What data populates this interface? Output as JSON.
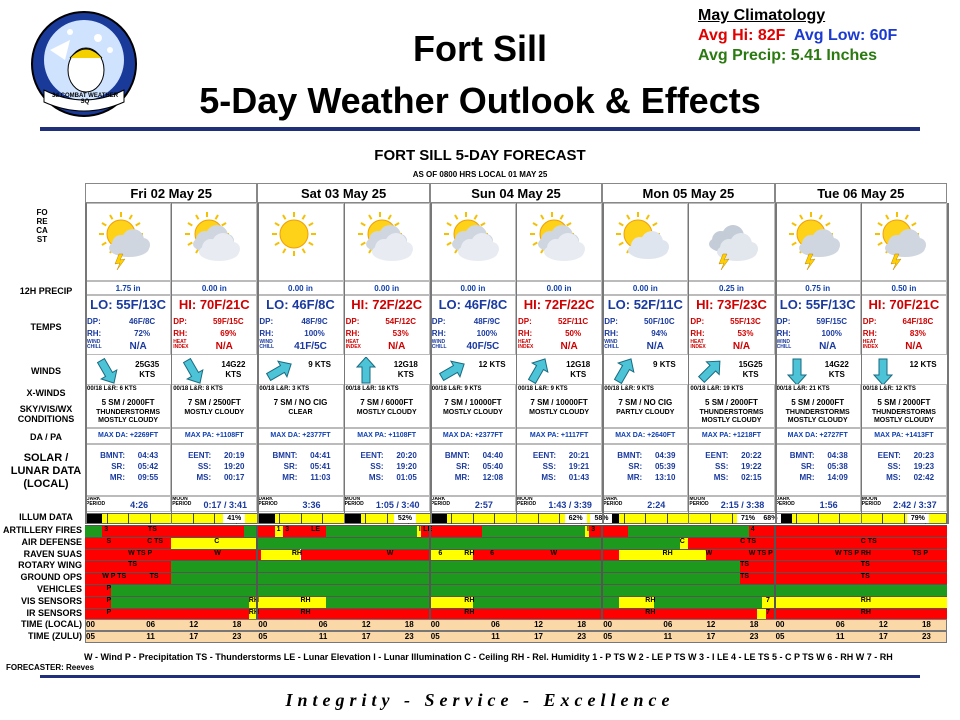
{
  "header": {
    "title1": "Fort Sill",
    "title2": "5-Day Weather Outlook & Effects",
    "logo_text": "3d COMBAT WEATHER SQ",
    "climatology": {
      "title": "May Climatology",
      "avg_hi": "Avg Hi: 82F",
      "avg_low": "Avg Low: 60F",
      "avg_precip": "Avg Precip: 5.41 Inches"
    }
  },
  "forecast": {
    "title": "FORT SILL 5-DAY FORECAST",
    "subtitle": "AS OF 0800 HRS LOCAL 01 MAY 25",
    "side_label": "FORECAST",
    "days": [
      "Fri 02 May 25",
      "Sat 03 May 25",
      "Sun 04 May 25",
      "Mon 05 May 25",
      "Tue 06 May 25"
    ],
    "row_labels": {
      "precip": "12H PRECIP",
      "temps": "TEMPS",
      "winds": "WINDS",
      "xwinds": "X-WINDS",
      "sky": "SKY/VIS/WX CONDITIONS",
      "dapa": "DA / PA",
      "solar": "SOLAR / LUNAR DATA (LOCAL)",
      "illum": "ILLUM DATA"
    },
    "periods": [
      {
        "icon": "thunderstorm-icon",
        "precip": "1.75 in",
        "temp": "LO: 55F/13C",
        "dp": "46F/8C",
        "rh": "72%",
        "wc_lbl": "WIND CHILL",
        "wc": "N/A",
        "wind": "25G35 KTS",
        "wind_rot": 60,
        "xw": "00/18 L&R: 6 KTS",
        "sky1": "5 SM / 2000FT",
        "sky2": "THUNDERSTORMS MOSTLY CLOUDY",
        "da": "MAX DA: +2269FT",
        "solar": [
          [
            "BMNT:",
            "04:43"
          ],
          [
            "SR:",
            "05:42"
          ],
          [
            "MR:",
            "09:55"
          ]
        ],
        "illum_lbl": "DARK PERIOD",
        "illum": "4:26"
      },
      {
        "icon": "cloudy-icon",
        "precip": "0.00 in",
        "temp": "HI: 70F/21C",
        "dp": "59F/15C",
        "rh": "69%",
        "wc_lbl": "HEAT INDEX",
        "wc": "N/A",
        "wind": "14G22 KTS",
        "wind_rot": 60,
        "xw": "00/18 L&R: 8 KTS",
        "sky1": "7 SM / 2500FT",
        "sky2": "MOSTLY CLOUDY",
        "da": "MAX PA: +1108FT",
        "solar": [
          [
            "EENT:",
            "20:19"
          ],
          [
            "SS:",
            "19:20"
          ],
          [
            "MS:",
            "00:17"
          ]
        ],
        "illum_lbl": "MOON PERIOD",
        "illum": "0:17 / 3:41"
      },
      {
        "icon": "sun-icon",
        "precip": "0.00 in",
        "temp": "LO: 46F/8C",
        "dp": "48F/9C",
        "rh": "100%",
        "wc_lbl": "WIND CHILL",
        "wc": "41F/5C",
        "wind": "9 KTS",
        "wind_rot": -30,
        "xw": "00/18 L&R: 3 KTS",
        "sky1": "7 SM / NO CIG",
        "sky2": "CLEAR",
        "da": "MAX DA: +2377FT",
        "solar": [
          [
            "BMNT:",
            "04:41"
          ],
          [
            "SR:",
            "05:41"
          ],
          [
            "MR:",
            "11:03"
          ]
        ],
        "illum_lbl": "DARK PERIOD",
        "illum": "3:36"
      },
      {
        "icon": "cloudy-icon",
        "precip": "0.00 in",
        "temp": "HI: 72F/22C",
        "dp": "54F/12C",
        "rh": "53%",
        "wc_lbl": "HEAT INDEX",
        "wc": "N/A",
        "wind": "12G18 KTS",
        "wind_rot": -90,
        "xw": "00/18 L&R: 18 KTS",
        "sky1": "7 SM / 6000FT",
        "sky2": "MOSTLY CLOUDY",
        "da": "MAX PA: +1108FT",
        "solar": [
          [
            "EENT:",
            "20:20"
          ],
          [
            "SS:",
            "19:20"
          ],
          [
            "MS:",
            "01:05"
          ]
        ],
        "illum_lbl": "MOON PERIOD",
        "illum": "1:05 / 3:40"
      },
      {
        "icon": "cloudy-icon",
        "precip": "0.00 in",
        "temp": "LO: 46F/8C",
        "dp": "48F/9C",
        "rh": "100%",
        "wc_lbl": "WIND CHILL",
        "wc": "40F/5C",
        "wind": "12 KTS",
        "wind_rot": -30,
        "xw": "00/18 L&R: 9 KTS",
        "sky1": "7 SM / 10000FT",
        "sky2": "MOSTLY CLOUDY",
        "da": "MAX DA: +2377FT",
        "solar": [
          [
            "BMNT:",
            "04:40"
          ],
          [
            "SR:",
            "05:40"
          ],
          [
            "MR:",
            "12:08"
          ]
        ],
        "illum_lbl": "DARK PERIOD",
        "illum": "2:57"
      },
      {
        "icon": "cloudy-icon",
        "precip": "0.00 in",
        "temp": "HI: 72F/22C",
        "dp": "52F/11C",
        "rh": "50%",
        "wc_lbl": "HEAT INDEX",
        "wc": "N/A",
        "wind": "12G18 KTS",
        "wind_rot": -60,
        "xw": "00/18 L&R: 9 KTS",
        "sky1": "7 SM / 10000FT",
        "sky2": "MOSTLY CLOUDY",
        "da": "MAX PA: +1117FT",
        "solar": [
          [
            "EENT:",
            "20:21"
          ],
          [
            "SS:",
            "19:21"
          ],
          [
            "MS:",
            "01:43"
          ]
        ],
        "illum_lbl": "MOON PERIOD",
        "illum": "1:43 / 3:39"
      },
      {
        "icon": "partly-cloudy-icon",
        "precip": "0.00 in",
        "temp": "LO: 52F/11C",
        "dp": "50F/10C",
        "rh": "94%",
        "wc_lbl": "WIND CHILL",
        "wc": "N/A",
        "wind": "9 KTS",
        "wind_rot": -60,
        "xw": "00/18 L&R: 9 KTS",
        "sky1": "7 SM / NO CIG",
        "sky2": "PARTLY CLOUDY",
        "da": "MAX DA: +2640FT",
        "solar": [
          [
            "BMNT:",
            "04:39"
          ],
          [
            "SR:",
            "05:39"
          ],
          [
            "MR:",
            "13:10"
          ]
        ],
        "illum_lbl": "DARK PERIOD",
        "illum": "2:24"
      },
      {
        "icon": "thunderstorm-cloud-icon",
        "precip": "0.25 in",
        "temp": "HI: 73F/23C",
        "dp": "55F/13C",
        "rh": "53%",
        "wc_lbl": "HEAT INDEX",
        "wc": "N/A",
        "wind": "15G25 KTS",
        "wind_rot": -45,
        "xw": "00/18 L&R: 19 KTS",
        "sky1": "5 SM / 2000FT",
        "sky2": "THUNDERSTORMS MOSTLY CLOUDY",
        "da": "MAX PA: +1218FT",
        "solar": [
          [
            "EENT:",
            "20:22"
          ],
          [
            "SS:",
            "19:22"
          ],
          [
            "MS:",
            "02:15"
          ]
        ],
        "illum_lbl": "MOON PERIOD",
        "illum": "2:15 / 3:38"
      },
      {
        "icon": "thunderstorm-icon",
        "precip": "0.75 in",
        "temp": "LO: 55F/13C",
        "dp": "59F/15C",
        "rh": "100%",
        "wc_lbl": "WIND CHILL",
        "wc": "N/A",
        "wind": "14G22 KTS",
        "wind_rot": 90,
        "xw": "00/18 L&R: 21 KTS",
        "sky1": "5 SM / 2000FT",
        "sky2": "THUNDERSTORMS MOSTLY CLOUDY",
        "da": "MAX DA: +2727FT",
        "solar": [
          [
            "BMNT:",
            "04:38"
          ],
          [
            "SR:",
            "05:38"
          ],
          [
            "MR:",
            "14:09"
          ]
        ],
        "illum_lbl": "DARK PERIOD",
        "illum": "1:56"
      },
      {
        "icon": "thunderstorm-icon",
        "precip": "0.50 in",
        "temp": "HI: 70F/21C",
        "dp": "64F/18C",
        "rh": "83%",
        "wc_lbl": "HEAT INDEX",
        "wc": "N/A",
        "wind": "12 KTS",
        "wind_rot": 90,
        "xw": "00/18 L&R: 12 KTS",
        "sky1": "5 SM / 2000FT",
        "sky2": "THUNDERSTORMS MOSTLY CLOUDY",
        "da": "MAX PA: +1413FT",
        "solar": [
          [
            "EENT:",
            "20:23"
          ],
          [
            "SS:",
            "19:23"
          ],
          [
            "MS:",
            "02:42"
          ]
        ],
        "illum_lbl": "MOON PERIOD",
        "illum": "2:42 / 3:37"
      }
    ],
    "illum_pcts": [
      {
        "text": "41%",
        "pos": 0.172
      },
      {
        "text": "52%",
        "pos": 0.37
      },
      {
        "text": "62%",
        "pos": 0.568
      },
      {
        "text": "58%",
        "pos": 0.598
      },
      {
        "text": "71%",
        "pos": 0.768
      },
      {
        "text": "68%",
        "pos": 0.794
      },
      {
        "text": "79%",
        "pos": 0.965
      }
    ],
    "dp_label": "DP:",
    "rh_label": "RH:"
  },
  "effects": {
    "rows": [
      {
        "label": "ARTILLERY FIRES",
        "segments": [
          [
            "g",
            0,
            0.02
          ],
          [
            "r",
            0.02,
            0.184,
            "3"
          ],
          [
            "g",
            0.184,
            0.2
          ],
          [
            "r",
            0.2,
            0.22
          ],
          [
            "y",
            0.22,
            0.23,
            "1"
          ],
          [
            "r",
            0.23,
            0.26,
            "3"
          ],
          [
            "r",
            0.26,
            0.28,
            "LE"
          ],
          [
            "g",
            0.28,
            0.385
          ],
          [
            "y",
            0.385,
            0.39,
            "I"
          ],
          [
            "r",
            0.39,
            0.46,
            "LE"
          ],
          [
            "g",
            0.46,
            0.58
          ],
          [
            "y",
            0.58,
            0.585,
            "I"
          ],
          [
            "r",
            0.585,
            0.63,
            "3"
          ],
          [
            "g",
            0.63,
            0.77
          ],
          [
            "r",
            0.77,
            0.79,
            "4"
          ],
          [
            "r",
            0.79,
            1.0
          ]
        ],
        "labels": [
          [
            "TS",
            0.073
          ]
        ]
      },
      {
        "label": "AIR DEFENSE",
        "segments": [
          [
            "r",
            0,
            0.1
          ],
          [
            "y",
            0.1,
            0.2
          ],
          [
            "g",
            0.2,
            0.69
          ],
          [
            "y",
            0.69,
            0.7
          ],
          [
            "r",
            0.7,
            1.0
          ]
        ],
        "labels": [
          [
            "S",
            0.025
          ],
          [
            "C TS",
            0.072
          ],
          [
            "C",
            0.15
          ],
          [
            "C",
            0.69
          ],
          [
            "C TS",
            0.76
          ],
          [
            "C TS",
            0.9
          ]
        ]
      },
      {
        "label": "RAVEN SUAS",
        "segments": [
          [
            "r",
            0,
            0.204
          ],
          [
            "y",
            0.204,
            0.25
          ],
          [
            "r",
            0.25,
            0.4
          ],
          [
            "y",
            0.4,
            0.45
          ],
          [
            "r",
            0.45,
            0.62
          ],
          [
            "y",
            0.62,
            0.72
          ],
          [
            "r",
            0.72,
            1.0
          ]
        ],
        "labels": [
          [
            "W TS P",
            0.05
          ],
          [
            "W",
            0.15
          ],
          [
            "RH",
            0.24
          ],
          [
            "W",
            0.35
          ],
          [
            "6",
            0.41
          ],
          [
            "RH",
            0.44
          ],
          [
            "6",
            0.47
          ],
          [
            "W",
            0.54
          ],
          [
            "RH",
            0.67
          ],
          [
            "W",
            0.72
          ],
          [
            "W TS P",
            0.77
          ],
          [
            "W TS P RH",
            0.87
          ],
          [
            "TS P",
            0.96
          ]
        ]
      },
      {
        "label": "ROTARY WING",
        "segments": [
          [
            "r",
            0,
            0.1
          ],
          [
            "g",
            0.1,
            0.76
          ],
          [
            "r",
            0.76,
            1.0
          ]
        ],
        "labels": [
          [
            "TS",
            0.05
          ],
          [
            "TS",
            0.76
          ],
          [
            "TS",
            0.9
          ]
        ]
      },
      {
        "label": "GROUND OPS",
        "segments": [
          [
            "r",
            0,
            0.1
          ],
          [
            "g",
            0.1,
            0.76
          ],
          [
            "r",
            0.76,
            1.0
          ]
        ],
        "labels": [
          [
            "W P TS",
            0.02
          ],
          [
            "TS",
            0.075
          ],
          [
            "TS",
            0.76
          ],
          [
            "TS",
            0.9
          ]
        ]
      },
      {
        "label": "VEHICLES",
        "segments": [
          [
            "r",
            0,
            0.03
          ],
          [
            "g",
            0.03,
            1.0
          ]
        ],
        "labels": [
          [
            "P",
            0.025
          ]
        ]
      },
      {
        "label": "VIS SENSORS",
        "segments": [
          [
            "r",
            0,
            0.03
          ],
          [
            "g",
            0.03,
            0.19
          ],
          [
            "y",
            0.19,
            0.28
          ],
          [
            "g",
            0.28,
            0.4
          ],
          [
            "y",
            0.4,
            0.45
          ],
          [
            "g",
            0.45,
            0.62
          ],
          [
            "y",
            0.62,
            0.66
          ],
          [
            "g",
            0.66,
            0.785
          ],
          [
            "y",
            0.785,
            1.0
          ]
        ],
        "labels": [
          [
            "P",
            0.025
          ],
          [
            "RH",
            0.19
          ],
          [
            "RH",
            0.25
          ],
          [
            "RH",
            0.44
          ],
          [
            "RH",
            0.65
          ],
          [
            "7",
            0.79
          ],
          [
            "RH",
            0.9
          ]
        ]
      },
      {
        "label": "IR SENSORS",
        "segments": [
          [
            "r",
            0,
            0.19
          ],
          [
            "y",
            0.19,
            0.2
          ],
          [
            "r",
            0.2,
            0.78
          ],
          [
            "y",
            0.78,
            0.79
          ],
          [
            "r",
            0.79,
            1.0
          ]
        ],
        "labels": [
          [
            "P",
            0.025
          ],
          [
            "RH",
            0.19
          ],
          [
            "RH",
            0.25
          ],
          [
            "RH",
            0.44
          ],
          [
            "RH",
            0.65
          ],
          [
            "7",
            0.79
          ],
          [
            "RH",
            0.9
          ]
        ]
      }
    ],
    "time_local_label": "TIME (LOCAL)",
    "time_zulu_label": "TIME (ZULU)",
    "time_local": [
      "00",
      "06",
      "12",
      "18",
      "00",
      "06",
      "12",
      "18",
      "00",
      "06",
      "12",
      "18",
      "00",
      "06",
      "12",
      "18",
      "00",
      "06",
      "12",
      "18"
    ],
    "time_zulu": [
      "05",
      "11",
      "17",
      "23",
      "05",
      "11",
      "17",
      "23",
      "05",
      "11",
      "17",
      "23",
      "05",
      "11",
      "17",
      "23",
      "05",
      "11",
      "17",
      "23"
    ]
  },
  "legend": "W - Wind   P - Precipitation   TS - Thunderstorms   LE - Lunar Elevation   I - Lunar Illumination   C - Ceiling   RH - Rel. Humidity   1 - P TS W   2 - LE P TS W   3 - I LE   4 - LE TS   5 - C P TS W   6 - RH W   7 - RH",
  "forecaster": "FORECASTER: Reeves",
  "motto": "Integrity - Service - Excellence",
  "colors": {
    "green": "#1d9a1d",
    "yellow": "#ffff00",
    "red": "#ff0000",
    "blue": "#1a3aa0",
    "purple_rule": "#1f2f7a"
  }
}
